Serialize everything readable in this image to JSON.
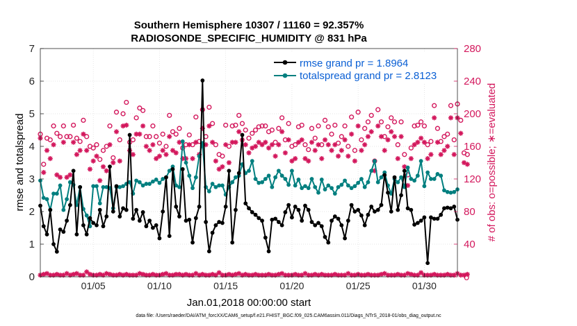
{
  "chart_data": {
    "type": "line",
    "title": "Southern Hemisphere 10307 / 11160 = 92.357%",
    "subtitle": "RADIOSONDE_SPECIFIC_HUMIDITY @ 831 hPa",
    "xlabel": "Jan.01,2018 00:00:00 start",
    "ylabel": "rmse and totalspread",
    "y2label": "# of obs: o=possible; ∗=evaluated",
    "xlim": [
      1,
      32.5
    ],
    "ylim": [
      0,
      7
    ],
    "y2lim": [
      0,
      280
    ],
    "x_ticks": [
      5,
      10,
      15,
      20,
      25,
      30
    ],
    "x_tick_labels": [
      "01/05",
      "01/10",
      "01/15",
      "01/20",
      "01/25",
      "01/30"
    ],
    "y_ticks": [
      0,
      1,
      2,
      3,
      4,
      5,
      6,
      7
    ],
    "y_tick_labels": [
      "0",
      "1",
      "2",
      "3",
      "4",
      "5",
      "6",
      "7"
    ],
    "y2_ticks": [
      0,
      40,
      80,
      120,
      160,
      200,
      240,
      280
    ],
    "y2_tick_labels": [
      "0",
      "40",
      "80",
      "120",
      "160",
      "200",
      "240",
      "280"
    ],
    "legend_position": "top-right",
    "series": [
      {
        "name": "rmse grand pr = 1.8964",
        "color": "#000000",
        "axis": "left",
        "values": [
          2.18,
          1.55,
          1.3,
          2.05,
          1.0,
          0.77,
          1.45,
          1.38,
          1.72,
          2.2,
          3.25,
          1.3,
          2.75,
          1.58,
          1.3,
          1.8,
          1.65,
          1.58,
          2.05,
          1.55,
          1.85,
          3.38,
          2.0,
          2.78,
          1.85,
          2.1,
          2.05,
          4.35,
          1.78,
          2.05,
          1.72,
          1.98,
          1.55,
          1.72,
          1.5,
          1.58,
          1.18,
          2.0,
          3.05,
          1.25,
          3.3,
          2.15,
          1.85,
          3.3,
          1.72,
          1.75,
          1.05,
          1.8,
          2.15,
          6.02,
          1.68,
          0.78,
          1.35,
          1.58,
          1.68,
          1.65,
          2.15,
          3.25,
          1.05,
          2.05,
          3.18,
          4.35,
          2.25,
          2.1,
          1.98,
          1.9,
          1.8,
          1.72,
          1.2,
          0.78,
          1.75,
          1.78,
          1.68,
          1.58,
          1.98,
          2.2,
          1.82,
          2.15,
          2.05,
          1.72,
          2.18,
          2.05,
          1.68,
          1.58,
          1.65,
          1.55,
          1.22,
          1.05,
          1.72,
          1.85,
          1.78,
          1.58,
          1.18,
          1.72,
          2.2,
          2.0,
          2.05,
          1.88,
          1.58,
          1.9,
          2.15,
          2.0,
          2.05,
          2.2,
          3.12,
          2.58,
          2.0,
          3.05,
          2.05,
          2.5,
          3.25,
          2.1,
          2.05,
          1.6,
          1.65,
          1.72,
          1.82,
          0.42,
          1.82,
          1.78,
          1.78,
          1.9,
          2.1,
          2.12,
          2.1,
          2.15,
          1.75
        ]
      },
      {
        "name": "totalspread grand pr = 2.8123",
        "color": "#007f7f",
        "axis": "left",
        "values": [
          2.95,
          2.42,
          2.38,
          2.05,
          2.55,
          2.55,
          2.8,
          2.05,
          2.38,
          2.9,
          2.82,
          2.2,
          2.75,
          2.08,
          1.88,
          1.55,
          2.78,
          2.78,
          2.25,
          2.75,
          2.75,
          2.72,
          2.1,
          2.75,
          2.75,
          2.78,
          2.85,
          2.9,
          2.55,
          2.95,
          2.9,
          2.8,
          2.85,
          2.85,
          2.92,
          2.98,
          2.88,
          3.0,
          3.05,
          3.25,
          3.38,
          2.8,
          2.75,
          4.15,
          3.5,
          3.1,
          2.72,
          3.05,
          3.7,
          4.1,
          2.75,
          2.62,
          2.85,
          2.75,
          2.8,
          2.8,
          2.52,
          2.75,
          2.9,
          3.05,
          3.1,
          3.45,
          3.18,
          3.25,
          3.55,
          3.0,
          2.88,
          2.9,
          3.0,
          3.1,
          2.75,
          3.05,
          3.25,
          3.1,
          3.0,
          2.82,
          3.25,
          2.8,
          2.98,
          2.72,
          2.78,
          2.72,
          3.0,
          2.75,
          2.58,
          2.98,
          2.68,
          2.8,
          2.72,
          2.55,
          2.75,
          2.82,
          2.95,
          2.8,
          2.72,
          2.78,
          2.88,
          3.0,
          2.75,
          2.9,
          3.25,
          3.55,
          2.9,
          3.05,
          3.2,
          2.8,
          2.55,
          3.0,
          2.9,
          3.05,
          2.75,
          3.35,
          3.0,
          2.95,
          3.1,
          3.55,
          2.78,
          3.2,
          3.0,
          3.0,
          3.15,
          3.1,
          2.65,
          2.6,
          2.58,
          2.6,
          2.68
        ]
      },
      {
        "name": "possible",
        "color": "#d3175c",
        "axis": "right",
        "marker": "o",
        "values": [
          175,
          138,
          170,
          168,
          185,
          176,
          172,
          185,
          172,
          172,
          186,
          170,
          166,
          192,
          172,
          160,
          158,
          162,
          144,
          155,
          160,
          185,
          146,
          202,
          168,
          200,
          214,
          165,
          168,
          195,
          207,
          204,
          172,
          172,
          185,
          172,
          164,
          175,
          160,
          198,
          178,
          175,
          182,
          158,
          162,
          174,
          162,
          196,
          166,
          205,
          172,
          208,
          188,
          162,
          150,
          148,
          186,
          160,
          185,
          186,
          198,
          188,
          180,
          170,
          176,
          180,
          184,
          185,
          185,
          178,
          180,
          165,
          182,
          195,
          168,
          188,
          160,
          162,
          184,
          186,
          162,
          156,
          182,
          170,
          185,
          162,
          192,
          184,
          175,
          186,
          164,
          172,
          185,
          160,
          196,
          155,
          202,
          168,
          182,
          190,
          198,
          142,
          205,
          190,
          172,
          184,
          195,
          190,
          162,
          190,
          150,
          125,
          158,
          185,
          186,
          190,
          185,
          162,
          166,
          210,
          182,
          166,
          172,
          175,
          210,
          168,
          212,
          192,
          152,
          150
        ]
      },
      {
        "name": "evaluated",
        "color": "#d3175c",
        "axis": "right",
        "marker": "*",
        "values": [
          170,
          128,
          155,
          145,
          162,
          125,
          122,
          165,
          122,
          125,
          165,
          150,
          155,
          175,
          155,
          132,
          142,
          148,
          118,
          135,
          130,
          162,
          140,
          178,
          142,
          185,
          186,
          155,
          150,
          175,
          175,
          185,
          160,
          155,
          162,
          145,
          148,
          155,
          150,
          172,
          155,
          152,
          165,
          145,
          145,
          162,
          145,
          165,
          150,
          182,
          162,
          185,
          165,
          142,
          132,
          135,
          162,
          140,
          165,
          165,
          178,
          168,
          162,
          152,
          158,
          160,
          165,
          162,
          165,
          158,
          162,
          148,
          162,
          178,
          152,
          168,
          142,
          145,
          165,
          168,
          145,
          142,
          165,
          155,
          162,
          145,
          168,
          162,
          155,
          162,
          148,
          155,
          168,
          148,
          175,
          142,
          185,
          155,
          162,
          172,
          178,
          130,
          185,
          172,
          155,
          168,
          178,
          172,
          145,
          172,
          135,
          112,
          145,
          162,
          165,
          170,
          165,
          145,
          150,
          195,
          165,
          150,
          155,
          160,
          195,
          150,
          195,
          176,
          140,
          138
        ]
      },
      {
        "name": "possible_minus_evaluated",
        "color": "#d3175c",
        "axis": "right",
        "values": [
          2,
          3,
          4,
          2,
          2,
          3,
          2,
          2,
          4,
          2,
          3,
          4,
          2,
          2,
          6,
          3,
          2,
          2,
          3,
          2,
          4,
          3,
          2,
          2,
          3,
          2,
          3,
          2,
          2,
          2,
          4,
          3,
          2,
          2,
          3,
          2,
          2,
          3,
          4,
          2,
          2,
          3,
          3,
          2,
          3,
          2,
          2,
          4,
          2,
          3,
          2,
          2,
          3,
          2,
          5,
          2,
          2,
          3,
          2,
          3,
          4,
          2,
          3,
          2,
          2,
          3,
          2,
          2,
          2,
          3,
          2,
          2,
          3,
          4,
          2,
          2,
          2,
          3,
          2,
          2,
          4,
          2,
          2,
          3,
          2,
          3,
          2,
          2,
          2,
          3,
          2,
          2,
          2,
          4,
          2,
          2,
          3,
          2,
          2,
          3,
          2,
          2,
          2,
          3,
          4,
          2,
          2,
          2,
          3,
          2,
          2,
          4,
          3,
          2,
          2,
          5,
          2,
          2,
          2,
          3,
          2,
          2,
          2,
          3,
          2,
          2,
          4,
          2,
          2,
          3
        ]
      }
    ]
  },
  "footer": {
    "data_file": "data file: /Users/raeder/DAI/ATM_forcXX/CAM6_setup/f.e21.FHIST_BGC.f09_025.CAM6assim.011/Diags_NTrS_2018-01/obs_diag_output.nc"
  }
}
